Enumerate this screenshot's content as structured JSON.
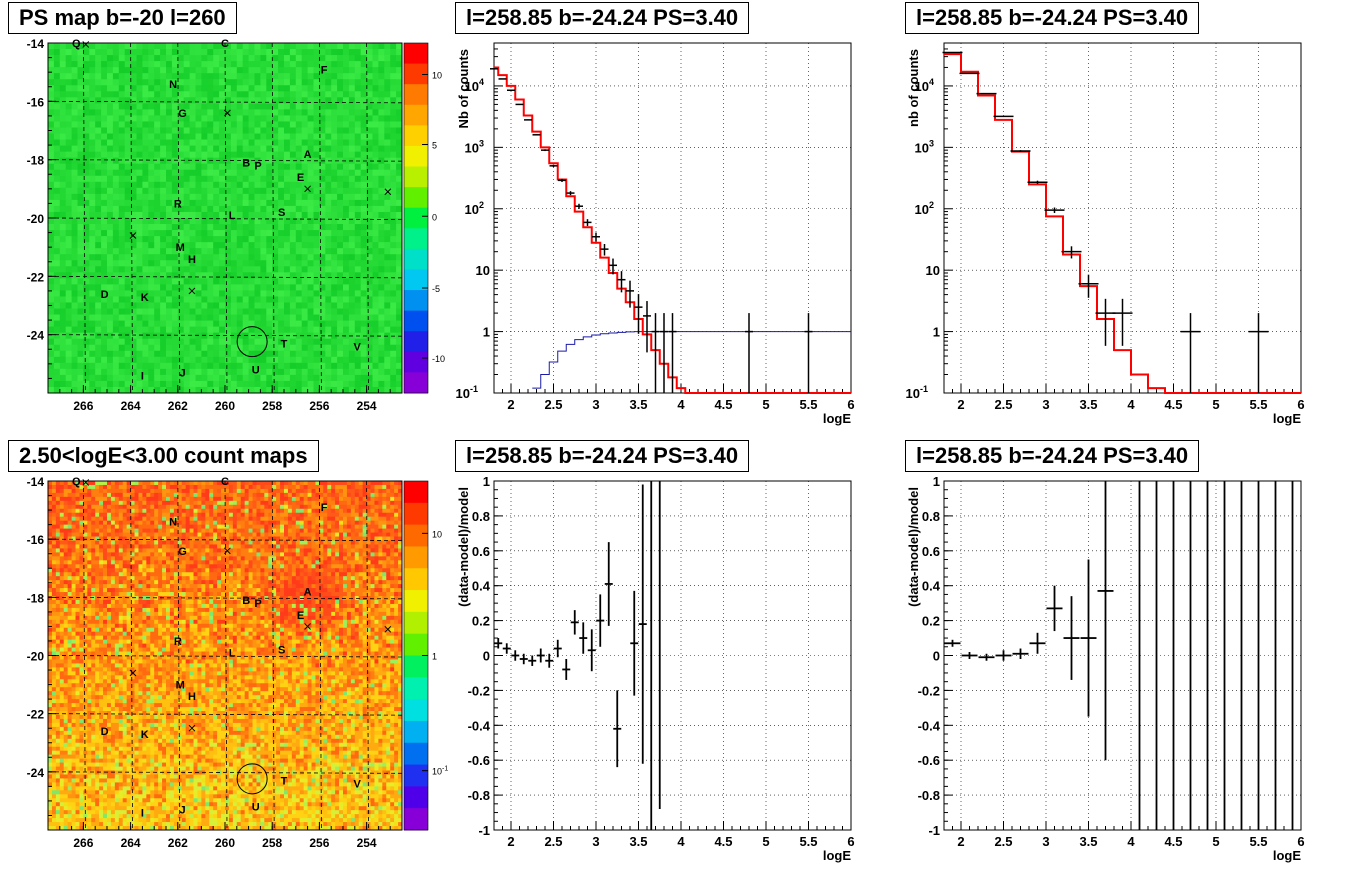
{
  "panels": [
    {
      "title": "PS map b=-20 l=260"
    },
    {
      "title": "l=258.85 b=-24.24 PS=3.40"
    },
    {
      "title": "l=258.85 b=-24.24 PS=3.40"
    },
    {
      "title": "2.50<logE<3.00 count maps"
    },
    {
      "title": "l=258.85 b=-24.24 PS=3.40"
    },
    {
      "title": "l=258.85 b=-24.24 PS=3.40"
    }
  ],
  "chart_data": [
    {
      "type": "heatmap",
      "title": "PS map b=-20 l=260",
      "colormap": "green-centered",
      "xlim": [
        267.5,
        252.5
      ],
      "ylim": [
        -26,
        -14
      ],
      "xticks": [
        266,
        264,
        262,
        260,
        258,
        256,
        254
      ],
      "yticks": [
        -14,
        -16,
        -18,
        -20,
        -22,
        -24
      ],
      "colorbar": {
        "scale": "linear",
        "range": [
          -13,
          14
        ],
        "ticks": [
          "10",
          "5",
          "0",
          "-5",
          "-10"
        ]
      },
      "labels": [
        "Q",
        "C",
        "N",
        "F",
        "G",
        "B",
        "P",
        "A",
        "E",
        "R",
        "L",
        "S",
        "M",
        "H",
        "D",
        "K",
        "T",
        "V",
        "I",
        "J",
        "U"
      ],
      "circle_center": [
        258.85,
        -24.24
      ]
    },
    {
      "type": "line",
      "title": "l=258.85 b=-24.24 PS=3.40",
      "xlabel": "logE",
      "ylabel": "Nb of counts",
      "log_y": true,
      "xlim": [
        1.8,
        6
      ],
      "ylim": [
        0.1,
        50000
      ],
      "xticks": [
        "2",
        "2.5",
        "3",
        "3.5",
        "4",
        "4.5",
        "5",
        "5.5",
        "6"
      ],
      "yticks": [
        "10^4",
        "10^3",
        "10^2",
        "10",
        "1",
        "10^-1"
      ],
      "grid": true,
      "data_x": [
        1.8,
        1.9,
        2.0,
        2.1,
        2.2,
        2.3,
        2.4,
        2.5,
        2.6,
        2.7,
        2.8,
        2.9,
        3.0,
        3.1,
        3.2,
        3.3,
        3.4,
        3.5,
        3.6,
        3.7,
        3.8,
        3.9,
        4.8,
        5.5
      ],
      "data_y": [
        19000,
        13000,
        8500,
        5000,
        2800,
        1600,
        900,
        500,
        290,
        180,
        110,
        60,
        35,
        22,
        12,
        7,
        4.6,
        2.5,
        1.8,
        1,
        1,
        1,
        1,
        1
      ],
      "model_steps": {
        "edges": [
          1.8,
          1.85,
          1.95,
          2.05,
          2.15,
          2.25,
          2.35,
          2.45,
          2.55,
          2.65,
          2.75,
          2.85,
          2.95,
          3.05,
          3.15,
          3.25,
          3.35,
          3.45,
          3.55,
          3.65,
          3.75,
          3.85,
          3.95,
          4.05,
          6.0
        ],
        "values": [
          20000,
          15000,
          10000,
          6000,
          3300,
          1800,
          1000,
          550,
          300,
          160,
          90,
          50,
          28,
          16,
          9,
          5,
          3,
          1.6,
          0.9,
          0.5,
          0.3,
          0.18,
          0.12,
          0.1
        ]
      },
      "bkg_steps": {
        "edges": [
          2.25,
          2.35,
          2.45,
          2.55,
          2.65,
          2.75,
          2.85,
          2.95,
          3.05,
          3.15,
          3.25,
          3.35,
          3.45,
          6.0
        ],
        "values": [
          0.12,
          0.2,
          0.32,
          0.48,
          0.62,
          0.74,
          0.82,
          0.88,
          0.92,
          0.95,
          0.97,
          0.99,
          1.0
        ]
      }
    },
    {
      "type": "line",
      "title": "l=258.85 b=-24.24 PS=3.40",
      "xlabel": "logE",
      "ylabel": "nb of counts",
      "log_y": true,
      "xlim": [
        1.8,
        6
      ],
      "ylim": [
        0.1,
        50000
      ],
      "xticks": [
        "2",
        "2.5",
        "3",
        "3.5",
        "4",
        "4.5",
        "5",
        "5.5",
        "6"
      ],
      "yticks": [
        "10^4",
        "10^3",
        "10^2",
        "10",
        "1",
        "10^-1"
      ],
      "grid": true,
      "data_x": [
        1.9,
        2.1,
        2.3,
        2.5,
        2.7,
        2.9,
        3.1,
        3.3,
        3.5,
        3.7,
        3.9,
        4.7,
        5.5
      ],
      "data_y": [
        35000,
        16000,
        7500,
        3200,
        870,
        270,
        95,
        20,
        6,
        2,
        2,
        1,
        1
      ],
      "model_steps": {
        "edges": [
          1.8,
          2.0,
          2.2,
          2.4,
          2.6,
          2.8,
          3.0,
          3.2,
          3.4,
          3.6,
          3.8,
          4.0,
          4.2,
          4.4,
          6.0
        ],
        "values": [
          33000,
          17000,
          7000,
          2800,
          850,
          250,
          75,
          18,
          5.5,
          1.6,
          0.5,
          0.2,
          0.12,
          0.1
        ]
      }
    },
    {
      "type": "heatmap",
      "title": "2.50<logE<3.00 count maps",
      "colormap": "rainbow",
      "xlim": [
        267.5,
        252.5
      ],
      "ylim": [
        -26,
        -14
      ],
      "xticks": [
        266,
        264,
        262,
        260,
        258,
        256,
        254
      ],
      "yticks": [
        -14,
        -16,
        -18,
        -20,
        -22,
        -24
      ],
      "colorbar": {
        "scale": "log",
        "ticks": [
          "10",
          "1",
          "10^-1"
        ]
      },
      "labels": [
        "Q",
        "C",
        "N",
        "F",
        "G",
        "B",
        "P",
        "A",
        "E",
        "R",
        "L",
        "S",
        "M",
        "H",
        "D",
        "K",
        "T",
        "V",
        "I",
        "J",
        "U"
      ],
      "circle_center": [
        258.85,
        -24.24
      ]
    },
    {
      "type": "scatter",
      "title": "l=258.85 b=-24.24 PS=3.40",
      "xlabel": "logE",
      "ylabel": "(data-model)/model",
      "xlim": [
        1.8,
        6
      ],
      "ylim": [
        -1,
        1
      ],
      "xticks": [
        "2",
        "2.5",
        "3",
        "3.5",
        "4",
        "4.5",
        "5",
        "5.5",
        "6"
      ],
      "yticks": [
        "1",
        "0.8",
        "0.6",
        "0.4",
        "0.2",
        "0",
        "-0.2",
        "-0.4",
        "-0.6",
        "-0.8",
        "-1"
      ],
      "grid": true,
      "x": [
        1.85,
        1.95,
        2.05,
        2.15,
        2.25,
        2.35,
        2.45,
        2.55,
        2.65,
        2.75,
        2.85,
        2.95,
        3.05,
        3.15,
        3.25,
        3.45,
        3.55,
        3.65,
        3.75
      ],
      "y": [
        0.07,
        0.04,
        0.0,
        -0.02,
        -0.03,
        0.0,
        -0.03,
        0.04,
        -0.08,
        0.19,
        0.1,
        0.03,
        0.2,
        0.41,
        -0.42,
        0.07,
        0.18,
        0.18,
        0.62
      ],
      "err": [
        0.03,
        0.03,
        0.03,
        0.03,
        0.03,
        0.04,
        0.04,
        0.05,
        0.06,
        0.07,
        0.09,
        0.12,
        0.15,
        0.24,
        0.22,
        0.3,
        0.8,
        1.5,
        1.5
      ]
    },
    {
      "type": "scatter",
      "title": "l=258.85 b=-24.24 PS=3.40",
      "xlabel": "logE",
      "ylabel": "(data-model)/model",
      "xlim": [
        1.8,
        6
      ],
      "ylim": [
        -1,
        1
      ],
      "xticks": [
        "2",
        "2.5",
        "3",
        "3.5",
        "4",
        "4.5",
        "5",
        "5.5",
        "6"
      ],
      "yticks": [
        "1",
        "0.8",
        "0.6",
        "0.4",
        "0.2",
        "0",
        "-0.2",
        "-0.4",
        "-0.6",
        "-0.8",
        "-1"
      ],
      "grid": true,
      "x": [
        1.9,
        2.1,
        2.3,
        2.5,
        2.7,
        2.9,
        3.1,
        3.3,
        3.5,
        3.7,
        4.1,
        4.3,
        4.5,
        4.7,
        4.9,
        5.1,
        5.3,
        5.5,
        5.7,
        5.9
      ],
      "y": [
        0.07,
        0.0,
        -0.01,
        0.0,
        0.01,
        0.07,
        0.27,
        0.1,
        0.1,
        0.37,
        0,
        0,
        0,
        0,
        0,
        0,
        0,
        0,
        0,
        0
      ],
      "err": [
        0.02,
        0.02,
        0.02,
        0.03,
        0.03,
        0.06,
        0.13,
        0.24,
        0.45,
        0.97,
        2,
        2,
        2,
        2,
        2,
        2,
        2,
        2,
        2,
        2
      ]
    }
  ]
}
